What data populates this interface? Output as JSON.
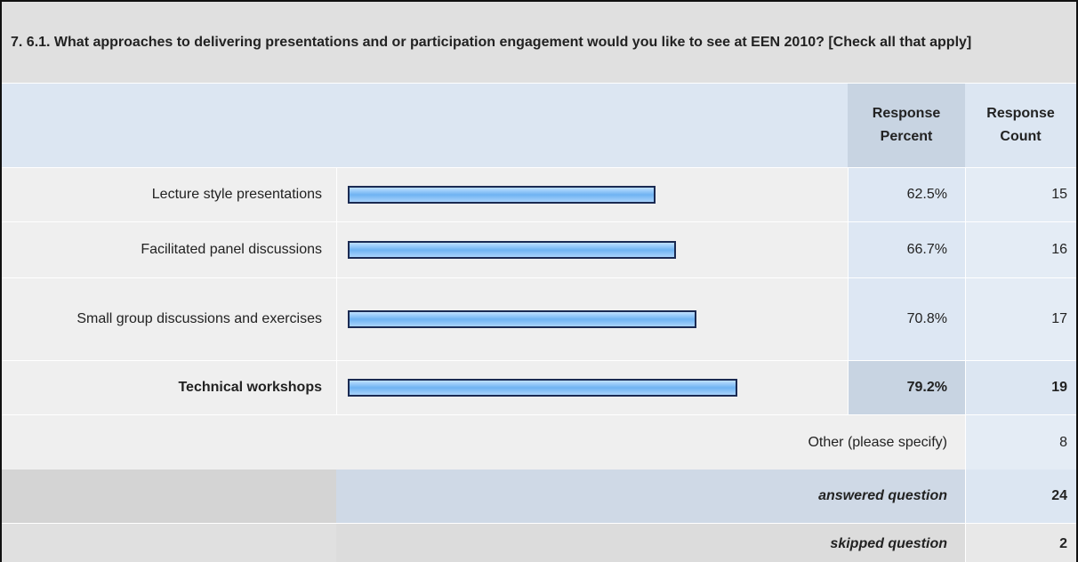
{
  "question": "7. 6.1. What approaches to delivering presentations and or participation engagement would you like to see at EEN 2010? [Check all that apply]",
  "columns": [
    "Response Percent",
    "Response Count"
  ],
  "rows": [
    {
      "label": "Lecture style presentations",
      "percent": 62.5,
      "percent_label": "62.5%",
      "count": 15
    },
    {
      "label": "Facilitated panel discussions",
      "percent": 66.7,
      "percent_label": "66.7%",
      "count": 16
    },
    {
      "label": "Small group discussions and exercises",
      "percent": 70.8,
      "percent_label": "70.8%",
      "count": 17
    },
    {
      "label": "Technical workshops",
      "percent": 79.2,
      "percent_label": "79.2%",
      "count": 19
    }
  ],
  "other": {
    "label": "Other (please specify)",
    "count": 8
  },
  "answered": {
    "label": "answered question",
    "count": 24
  },
  "skipped": {
    "label": "skipped question",
    "count": 2
  }
}
